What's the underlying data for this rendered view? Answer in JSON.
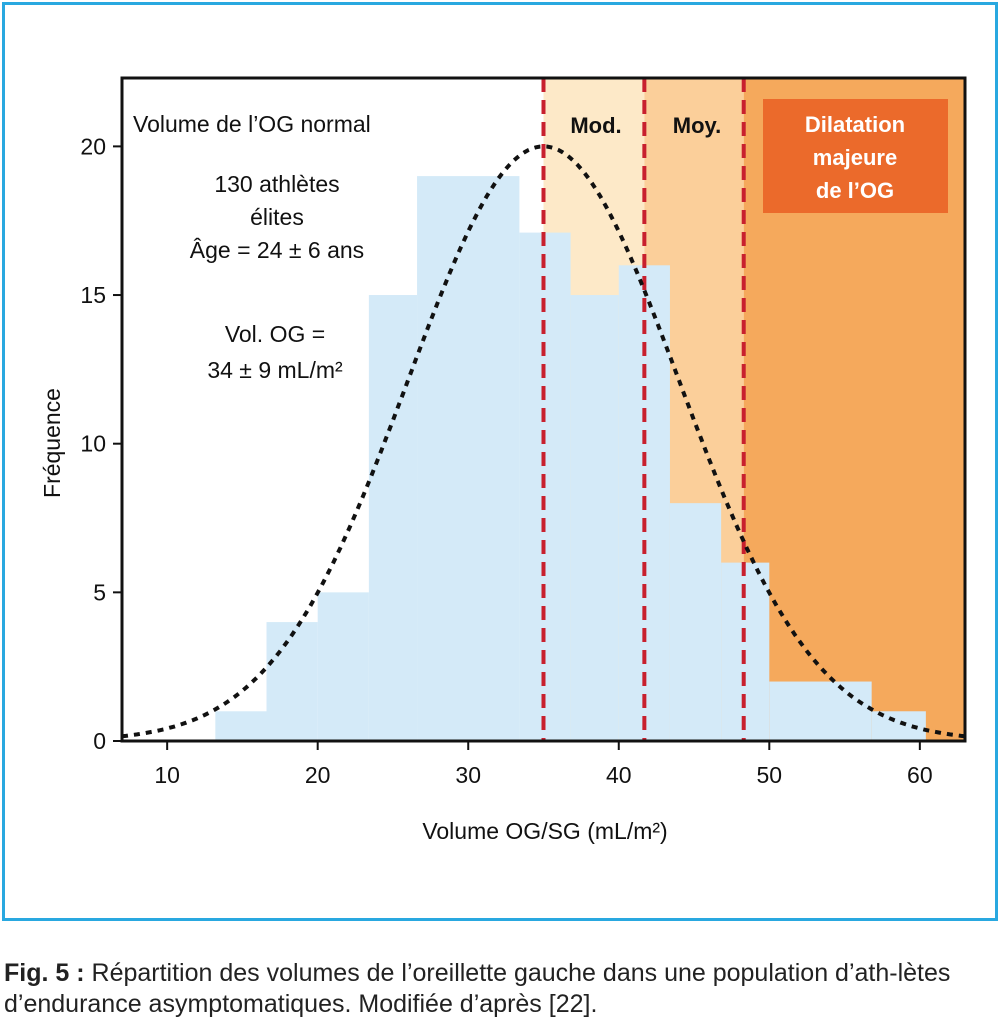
{
  "chart_data": {
    "type": "bar",
    "xlabel": "Volume OG/SG (mL/m²)",
    "ylabel": "Fréquence",
    "xlim": [
      7,
      63
    ],
    "ylim": [
      0,
      22.3
    ],
    "x_ticks": [
      10,
      20,
      30,
      40,
      50,
      60
    ],
    "y_ticks": [
      0,
      5,
      10,
      15,
      20
    ],
    "grid": false,
    "bins": [
      {
        "x0": 13.2,
        "x1": 16.6,
        "value": 1
      },
      {
        "x0": 16.6,
        "x1": 20.0,
        "value": 4
      },
      {
        "x0": 20.0,
        "x1": 23.4,
        "value": 5
      },
      {
        "x0": 23.4,
        "x1": 26.6,
        "value": 15
      },
      {
        "x0": 26.6,
        "x1": 33.4,
        "value": 19
      },
      {
        "x0": 33.4,
        "x1": 36.8,
        "value": 17.1
      },
      {
        "x0": 36.8,
        "x1": 40.0,
        "value": 15
      },
      {
        "x0": 40.0,
        "x1": 43.4,
        "value": 16
      },
      {
        "x0": 43.4,
        "x1": 46.8,
        "value": 8
      },
      {
        "x0": 46.8,
        "x1": 50.0,
        "value": 6
      },
      {
        "x0": 50.0,
        "x1": 56.8,
        "value": 2
      },
      {
        "x0": 56.8,
        "x1": 60.4,
        "value": 1
      }
    ],
    "normal_curve": {
      "mean": 35,
      "sd": 9,
      "peak": 20
    },
    "cutoffs": [
      35,
      41.7,
      48.3
    ],
    "zones": [
      {
        "x0": 35,
        "x1": 41.7,
        "label": "Mod.",
        "color": "#fde9c8"
      },
      {
        "x0": 41.7,
        "x1": 48.3,
        "label": "Moy.",
        "color": "#fbcf9a"
      },
      {
        "x0": 48.3,
        "x1": 63,
        "label": "Dilatation majeure de l’OG",
        "color": "#f5a95c"
      }
    ],
    "annotations": {
      "normal_label": "Volume de l’OG normal",
      "pop_line1": "130 athlètes",
      "pop_line2": "élites",
      "pop_line3": "Âge = 24 ± 6 ans",
      "vol_line1": "Vol. OG =",
      "vol_line2": "34 ± 9 mL/m²",
      "zone_mod": "Mod.",
      "zone_moy": "Moy.",
      "zone_major_line1": "Dilatation",
      "zone_major_line2": "majeure",
      "zone_major_line3": "de l’OG"
    },
    "colors": {
      "bar": "#d4eaf8",
      "cutoff": "#c8202e",
      "frame": "#29a8e0",
      "major_box": "#eb6a2b"
    }
  },
  "caption": {
    "label": "Fig. 5 :",
    "text": " Répartition des volumes de l’oreillette gauche dans une population d’ath-lètes d’endurance asymptomatiques. Modifiée d’après [22]."
  }
}
